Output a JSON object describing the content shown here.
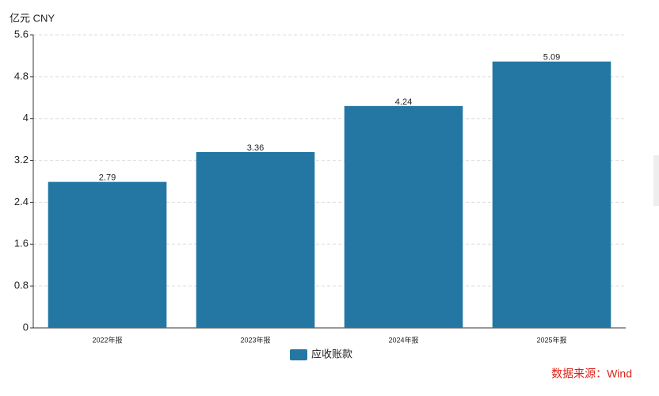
{
  "chart_data": {
    "type": "bar",
    "y_label": "亿元  CNY",
    "categories": [
      "2022年报",
      "2023年报",
      "2024年报",
      "2025年报"
    ],
    "series": [
      {
        "name": "应收账款",
        "color": "#2477a3",
        "values": [
          2.79,
          3.36,
          4.24,
          5.09
        ]
      }
    ],
    "ylim": [
      0,
      5.6
    ],
    "yticks": [
      0,
      0.8,
      1.6,
      2.4,
      3.2,
      4,
      4.8,
      5.6
    ],
    "grid": true,
    "legend": "bottom",
    "source": "数据来源：Wind"
  }
}
